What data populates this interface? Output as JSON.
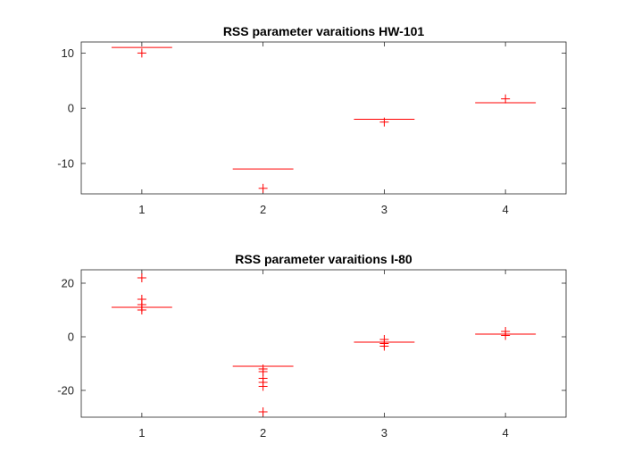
{
  "chart_data": [
    {
      "type": "box",
      "title": "RSS parameter varaitions HW-101",
      "xlabel": "",
      "ylabel": "",
      "categories": [
        "1",
        "2",
        "3",
        "4"
      ],
      "medians": [
        11,
        -11,
        -2,
        1
      ],
      "outliers": [
        [
          10
        ],
        [
          -14.5
        ],
        [
          -2.5
        ],
        [
          1.7
        ]
      ],
      "ylim": [
        -15.5,
        12
      ],
      "yticks": [
        -10,
        0,
        10
      ],
      "grid": false,
      "color": "#ff0000"
    },
    {
      "type": "box",
      "title": "RSS parameter varaitions I-80",
      "xlabel": "",
      "ylabel": "",
      "categories": [
        "1",
        "2",
        "3",
        "4"
      ],
      "medians": [
        11,
        -11,
        -2,
        1
      ],
      "outliers": [
        [
          22,
          14,
          12,
          11,
          10
        ],
        [
          -12,
          -13,
          -15.5,
          -17,
          -18.5,
          -28
        ],
        [
          -1,
          -2.5,
          -3.5
        ],
        [
          2,
          0.5
        ]
      ],
      "ylim": [
        -30,
        25
      ],
      "yticks": [
        -20,
        0,
        20
      ],
      "grid": false,
      "color": "#ff0000"
    }
  ]
}
